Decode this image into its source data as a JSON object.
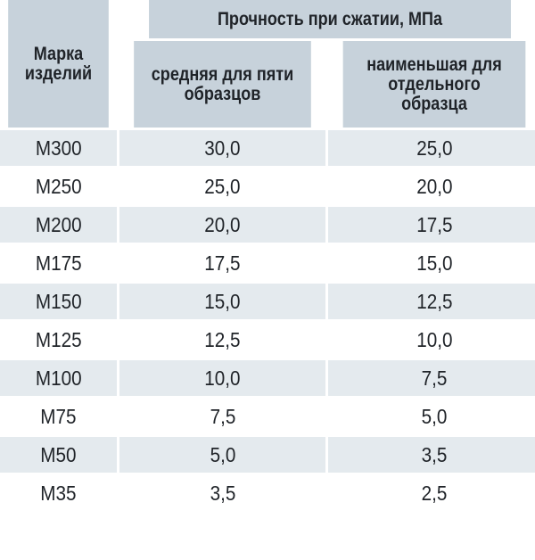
{
  "header": {
    "brand_label": "Марка изделий",
    "group_label": "Прочность при сжатии, МПа",
    "col_avg_label": "средняя для пяти образцов",
    "col_min_label": "наименьшая для отдельного образца"
  },
  "rows": [
    {
      "grade": "M300",
      "avg": "30,0",
      "min": "25,0"
    },
    {
      "grade": "M250",
      "avg": "25,0",
      "min": "20,0"
    },
    {
      "grade": "M200",
      "avg": "20,0",
      "min": "17,5"
    },
    {
      "grade": "M175",
      "avg": "17,5",
      "min": "15,0"
    },
    {
      "grade": "M150",
      "avg": "15,0",
      "min": "12,5"
    },
    {
      "grade": "M125",
      "avg": "12,5",
      "min": "10,0"
    },
    {
      "grade": "M100",
      "avg": "10,0",
      "min": "7,5"
    },
    {
      "grade": "M75",
      "avg": "7,5",
      "min": "5,0"
    },
    {
      "grade": "M50",
      "avg": "5,0",
      "min": "3,5"
    },
    {
      "grade": "M35",
      "avg": "3,5",
      "min": "2,5"
    }
  ],
  "colors": {
    "header_bg": "#c7d2db",
    "odd_row_bg": "#e4eaee",
    "even_row_bg": "#ffffff",
    "text": "#1f2328"
  }
}
